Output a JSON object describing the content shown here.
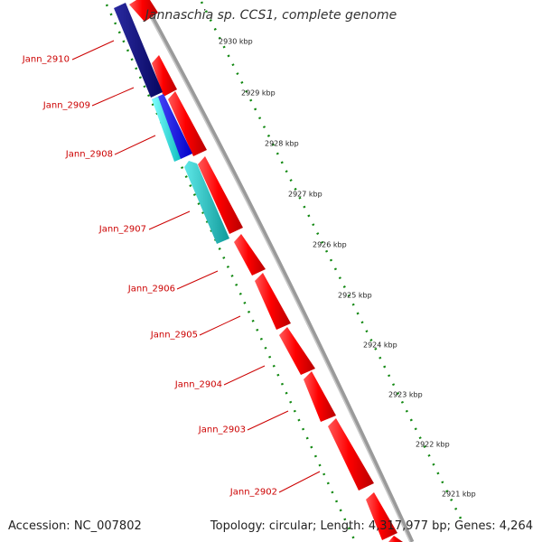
{
  "title": "Jannaschia sp. CCS1, complete genome",
  "accession": "Accession: NC_007802",
  "topology": "Topology: circular; Length: 4,317,977 bp; Genes: 4,264",
  "colors": {
    "forward_gene": "#ff0000",
    "reverse_dark": "#0a0a7a",
    "reverse_blue": "#1010ee",
    "reverse_cyan": "#20d0d0",
    "label": "#cc0000",
    "dots": "#118811",
    "backbone": "#888888"
  },
  "scale_ticks": [
    {
      "label": "2930 kbp"
    },
    {
      "label": "2929 kbp"
    },
    {
      "label": "2928 kbp"
    },
    {
      "label": "2927 kbp"
    },
    {
      "label": "2926 kbp"
    },
    {
      "label": "2925 kbp"
    },
    {
      "label": "2924 kbp"
    },
    {
      "label": "2923 kbp"
    },
    {
      "label": "2922 kbp"
    },
    {
      "label": "2921 kbp"
    }
  ],
  "gene_labels": [
    {
      "label": "Jann_2910"
    },
    {
      "label": "Jann_2909"
    },
    {
      "label": "Jann_2908"
    },
    {
      "label": "Jann_2907"
    },
    {
      "label": "Jann_2906"
    },
    {
      "label": "Jann_2905"
    },
    {
      "label": "Jann_2904"
    },
    {
      "label": "Jann_2903"
    },
    {
      "label": "Jann_2902"
    }
  ]
}
